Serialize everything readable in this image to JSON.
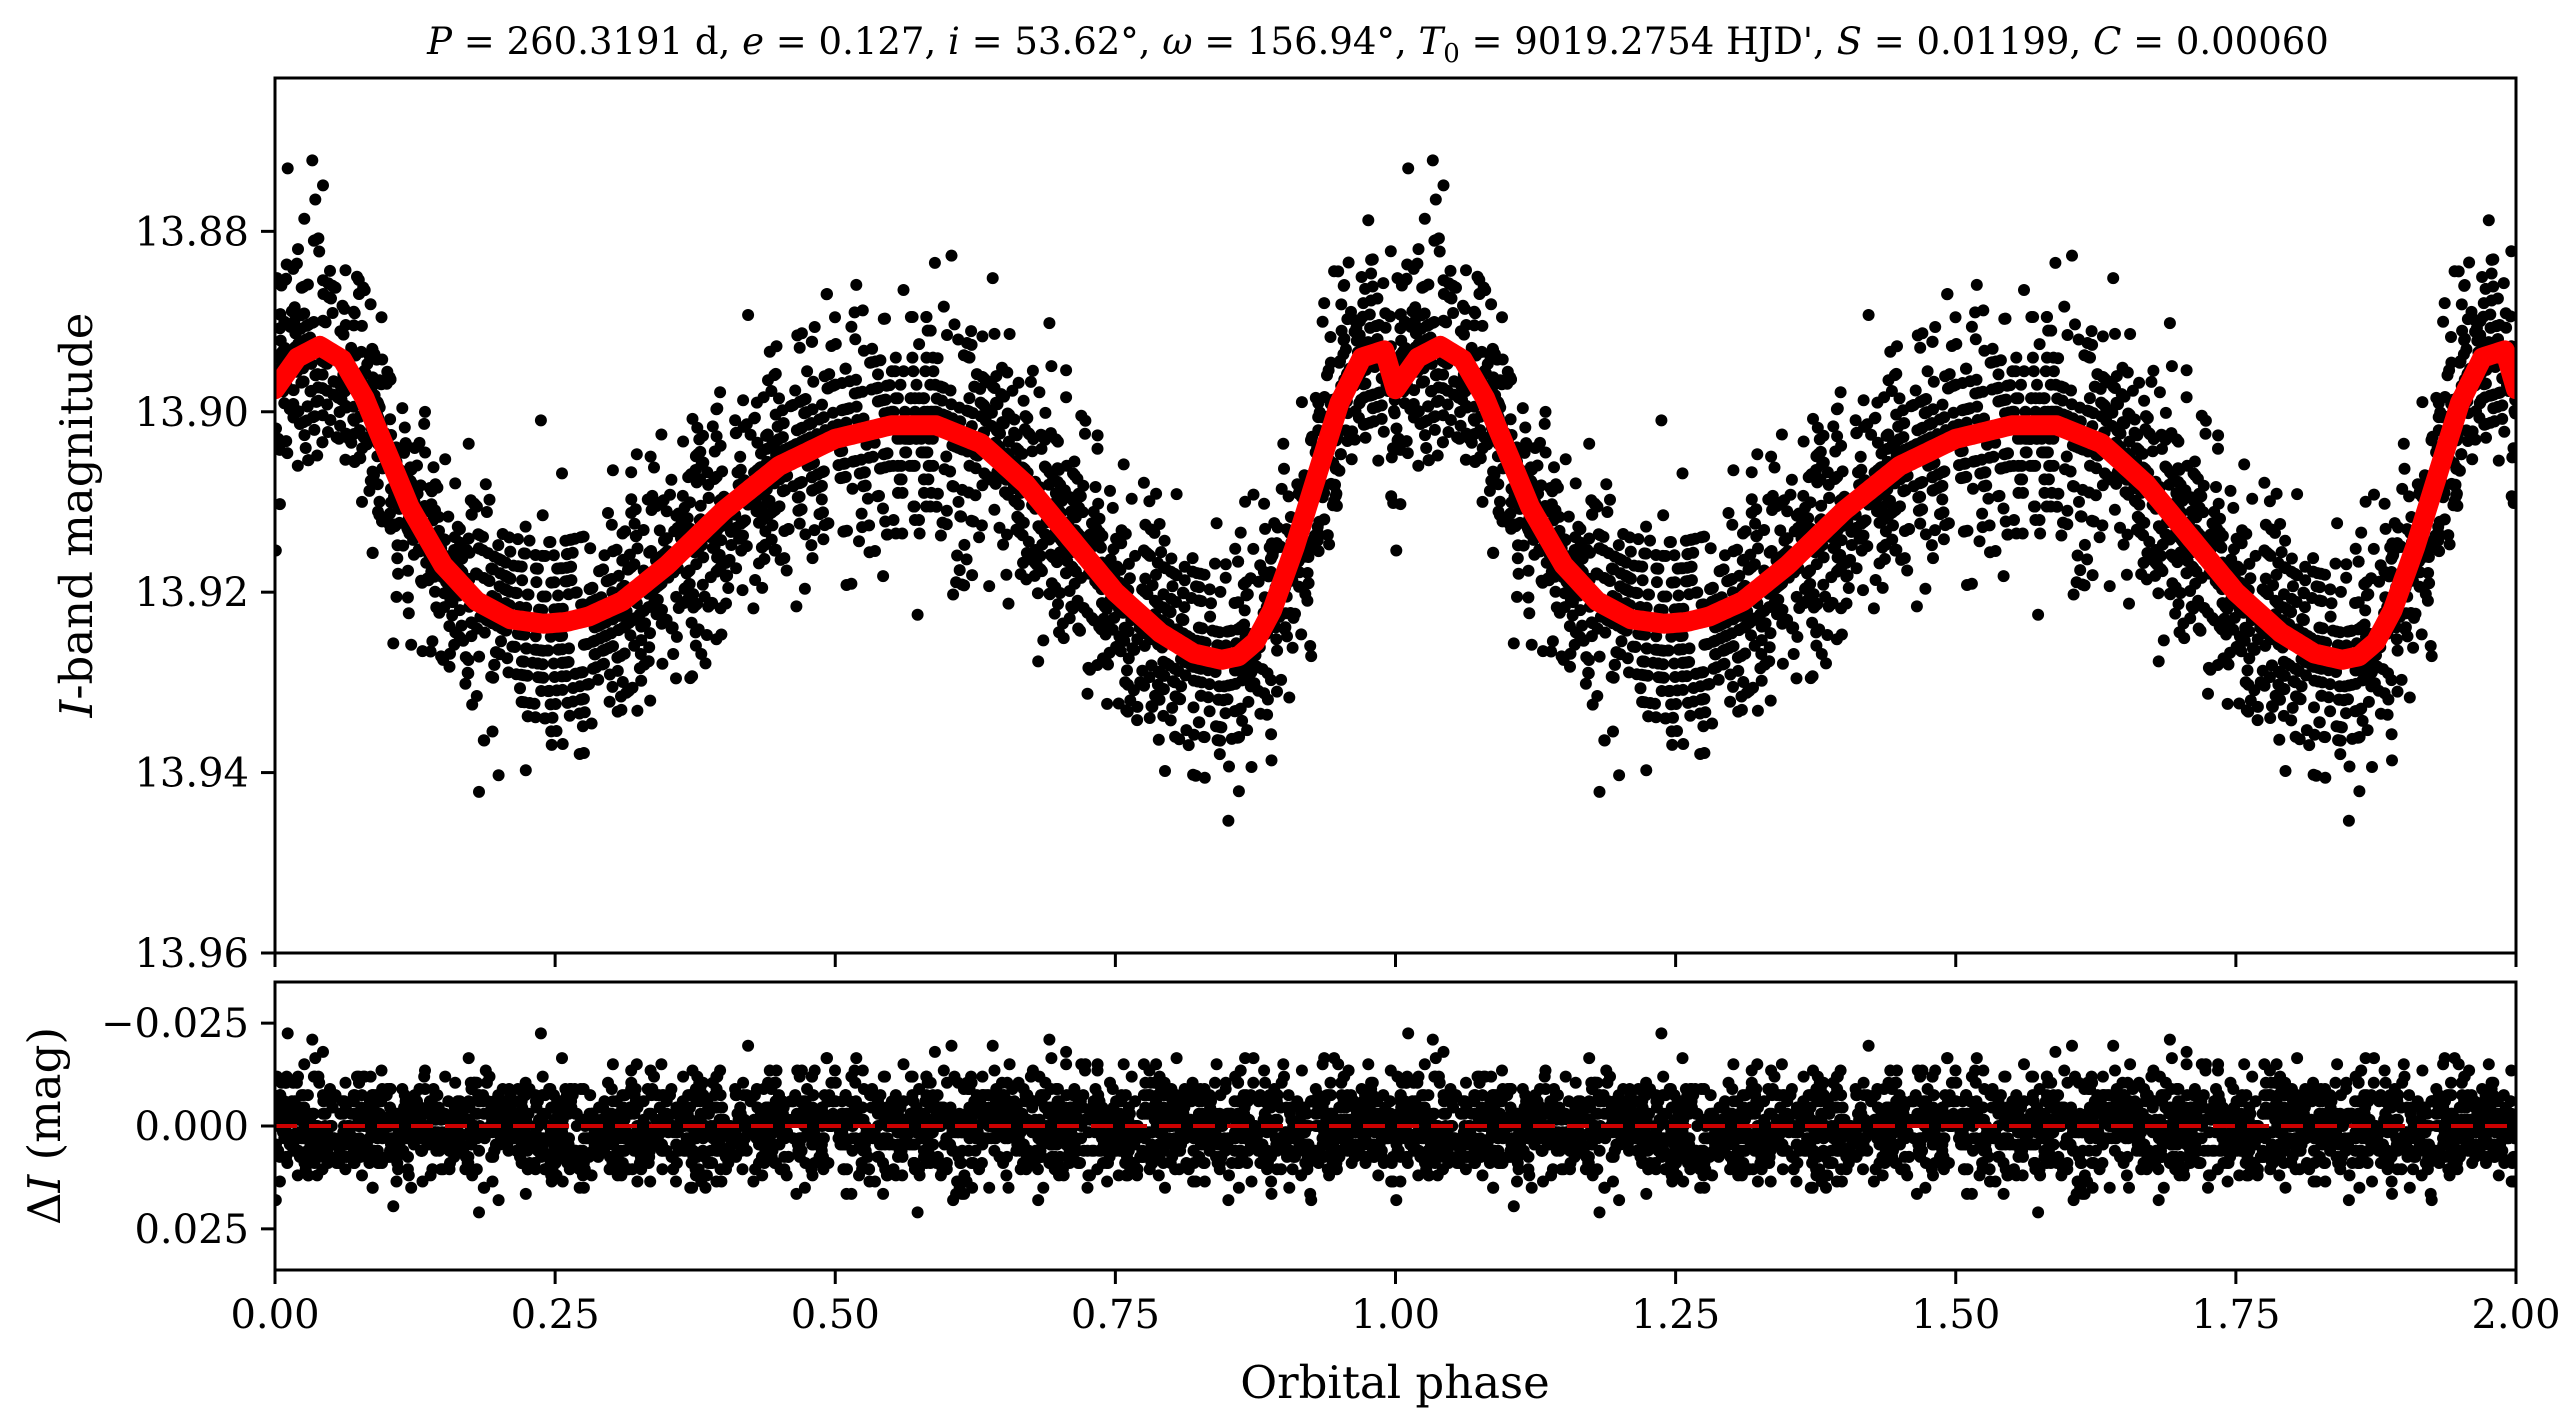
{
  "chart_data": [
    {
      "type": "scatter",
      "panel": "top",
      "title_parts": {
        "P_symbol": "P",
        "P_value": " = 260.3191 d, ",
        "e_symbol": "e",
        "e_value": " = 0.127, ",
        "i_symbol": "i",
        "i_value": " = 53.62°, ",
        "omega_symbol": "ω",
        "omega_value": " = 156.94°, ",
        "T0_symbol": "T",
        "T0_sub": "0",
        "T0_value": " = 9019.2754 HJD', ",
        "S_symbol": "S",
        "S_value": " = 0.01199, ",
        "C_symbol": "C",
        "C_value": " = 0.00060"
      },
      "ylabel_parts": {
        "symbol": "I",
        "rest": "-band magnitude"
      },
      "xlim": [
        0.0,
        2.0
      ],
      "ylim": [
        13.96,
        13.863
      ],
      "y_inverted": true,
      "yticks": [
        13.88,
        13.9,
        13.92,
        13.94,
        13.96
      ],
      "ytick_labels": [
        "13.88",
        "13.90",
        "13.92",
        "13.94",
        "13.96"
      ],
      "xticks": [
        0.0,
        0.25,
        0.5,
        0.75,
        1.0,
        1.25,
        1.5,
        1.75,
        2.0
      ],
      "point_color": "#000000",
      "model_color": "#ff0000",
      "model_curve": {
        "name": "model",
        "x": [
          0.0,
          0.02,
          0.04,
          0.06,
          0.08,
          0.1,
          0.12,
          0.15,
          0.18,
          0.21,
          0.24,
          0.26,
          0.28,
          0.31,
          0.35,
          0.4,
          0.45,
          0.5,
          0.55,
          0.59,
          0.63,
          0.67,
          0.71,
          0.75,
          0.79,
          0.82,
          0.845,
          0.86,
          0.875,
          0.89,
          0.91,
          0.93,
          0.95,
          0.97,
          0.99,
          1.0,
          1.02,
          1.04,
          1.06,
          1.08,
          1.1,
          1.12,
          1.15,
          1.18,
          1.21,
          1.24,
          1.26,
          1.28,
          1.31,
          1.35,
          1.4,
          1.45,
          1.5,
          1.55,
          1.59,
          1.63,
          1.67,
          1.71,
          1.75,
          1.79,
          1.82,
          1.845,
          1.86,
          1.875,
          1.89,
          1.91,
          1.93,
          1.95,
          1.97,
          1.99,
          2.0
        ],
        "y": [
          13.8975,
          13.894,
          13.8927,
          13.8942,
          13.8985,
          13.9045,
          13.9105,
          13.917,
          13.921,
          13.923,
          13.9235,
          13.9233,
          13.9227,
          13.921,
          13.917,
          13.911,
          13.906,
          13.903,
          13.9015,
          13.9015,
          13.9035,
          13.908,
          13.914,
          13.92,
          13.9245,
          13.9268,
          13.9275,
          13.9271,
          13.9255,
          13.922,
          13.915,
          13.907,
          13.899,
          13.894,
          13.8932,
          13.8975,
          13.894,
          13.8927,
          13.8942,
          13.8985,
          13.9045,
          13.9105,
          13.917,
          13.921,
          13.923,
          13.9235,
          13.9233,
          13.9227,
          13.921,
          13.917,
          13.911,
          13.906,
          13.903,
          13.9015,
          13.9015,
          13.9035,
          13.908,
          13.914,
          13.92,
          13.9245,
          13.9268,
          13.9275,
          13.9271,
          13.9255,
          13.922,
          13.915,
          13.907,
          13.899,
          13.894,
          13.8932,
          13.8975
        ]
      },
      "observations_note_count": 5000,
      "observations_scatter_sigma": 0.0065
    },
    {
      "type": "scatter",
      "panel": "bottom",
      "ylabel_parts": {
        "prefix": "Δ",
        "symbol": "I",
        "rest": " (mag)"
      },
      "xlabel": "Orbital phase",
      "xlim": [
        0.0,
        2.0
      ],
      "ylim": [
        0.035,
        -0.035
      ],
      "y_inverted": true,
      "yticks": [
        -0.025,
        0.0,
        0.025
      ],
      "ytick_labels": [
        "−0.025",
        "0.000",
        "0.025"
      ],
      "xticks": [
        0.0,
        0.25,
        0.5,
        0.75,
        1.0,
        1.25,
        1.5,
        1.75,
        2.0
      ],
      "xtick_labels": [
        "0.00",
        "0.25",
        "0.50",
        "0.75",
        "1.00",
        "1.25",
        "1.50",
        "1.75",
        "2.00"
      ],
      "reference_line": {
        "y": 0.0,
        "style": "dashed",
        "color": "#cc0000"
      },
      "residual_sigma": 0.0065
    }
  ]
}
